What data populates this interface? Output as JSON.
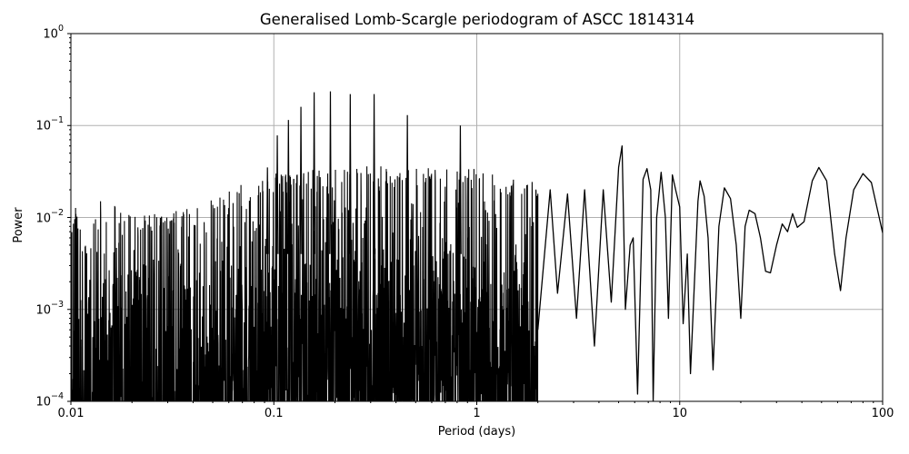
{
  "chart_data": {
    "type": "line",
    "title": "Generalised Lomb-Scargle periodogram of ASCC 1814314",
    "xlabel": "Period (days)",
    "ylabel": "Power",
    "xscale": "log",
    "yscale": "log",
    "xlim": [
      0.01,
      100
    ],
    "ylim": [
      0.0001,
      1
    ],
    "grid": true,
    "legend": null,
    "line_color": "#000000",
    "grid_color": "#b0b0b0",
    "x_ticks": [
      {
        "value": 0.01,
        "label": "0.01"
      },
      {
        "value": 0.1,
        "label": "0.1"
      },
      {
        "value": 1,
        "label": "1"
      },
      {
        "value": 10,
        "label": "10"
      },
      {
        "value": 100,
        "label": "100"
      }
    ],
    "y_ticks": [
      {
        "value": 1,
        "base": "10",
        "exp": "0"
      },
      {
        "value": 0.1,
        "base": "10",
        "exp": "−1"
      },
      {
        "value": 0.01,
        "base": "10",
        "exp": "−2"
      },
      {
        "value": 0.001,
        "base": "10",
        "exp": "−3"
      },
      {
        "value": 0.0001,
        "base": "10",
        "exp": "−4"
      }
    ],
    "noise_envelope": {
      "description": "dense oscillating periodogram below ~2 days; upper envelope (period, power)",
      "points": [
        [
          0.01,
          0.006
        ],
        [
          0.0105,
          0.011
        ],
        [
          0.012,
          0.004
        ],
        [
          0.014,
          0.013
        ],
        [
          0.02,
          0.01
        ],
        [
          0.03,
          0.009
        ],
        [
          0.05,
          0.014
        ],
        [
          0.08,
          0.022
        ],
        [
          0.1,
          0.025
        ],
        [
          0.2,
          0.03
        ],
        [
          0.5,
          0.03
        ],
        [
          1.0,
          0.028
        ],
        [
          2.0,
          0.02
        ]
      ]
    },
    "harmonic_peaks": [
      {
        "period": 0.093,
        "power": 0.035
      },
      {
        "period": 0.104,
        "power": 0.078
      },
      {
        "period": 0.118,
        "power": 0.115
      },
      {
        "period": 0.136,
        "power": 0.16
      },
      {
        "period": 0.158,
        "power": 0.23
      },
      {
        "period": 0.19,
        "power": 0.235
      },
      {
        "period": 0.238,
        "power": 0.22
      },
      {
        "period": 0.312,
        "power": 0.22
      },
      {
        "period": 0.455,
        "power": 0.13
      },
      {
        "period": 0.83,
        "power": 0.1
      }
    ],
    "smooth_tail": {
      "description": "resolved curve at long periods (period, power)",
      "points": [
        [
          2.0,
          0.0006
        ],
        [
          2.3,
          0.02
        ],
        [
          2.5,
          0.0015
        ],
        [
          2.8,
          0.018
        ],
        [
          3.1,
          0.0008
        ],
        [
          3.4,
          0.02
        ],
        [
          3.8,
          0.0004
        ],
        [
          4.2,
          0.02
        ],
        [
          4.6,
          0.0012
        ],
        [
          5.0,
          0.035
        ],
        [
          5.2,
          0.06
        ],
        [
          5.4,
          0.001
        ],
        [
          5.7,
          0.005
        ],
        [
          5.9,
          0.006
        ],
        [
          6.2,
          0.00012
        ],
        [
          6.6,
          0.026
        ],
        [
          6.9,
          0.034
        ],
        [
          7.2,
          0.02
        ],
        [
          7.4,
          0.0001
        ],
        [
          7.7,
          0.01
        ],
        [
          8.1,
          0.031
        ],
        [
          8.5,
          0.01
        ],
        [
          8.8,
          0.0008
        ],
        [
          9.2,
          0.029
        ],
        [
          9.6,
          0.019
        ],
        [
          10.0,
          0.013
        ],
        [
          10.4,
          0.0007
        ],
        [
          10.9,
          0.004
        ],
        [
          11.3,
          0.0002
        ],
        [
          12.3,
          0.015
        ],
        [
          12.6,
          0.025
        ],
        [
          13.2,
          0.017
        ],
        [
          13.8,
          0.006
        ],
        [
          14.6,
          0.00022
        ],
        [
          15.6,
          0.008
        ],
        [
          16.6,
          0.021
        ],
        [
          17.8,
          0.016
        ],
        [
          19.0,
          0.005
        ],
        [
          20.0,
          0.0008
        ],
        [
          21.0,
          0.008
        ],
        [
          22.0,
          0.012
        ],
        [
          23.5,
          0.011
        ],
        [
          25.0,
          0.006
        ],
        [
          26.5,
          0.0026
        ],
        [
          28.0,
          0.0025
        ],
        [
          30.0,
          0.005
        ],
        [
          32.0,
          0.0085
        ],
        [
          34.0,
          0.007
        ],
        [
          36.0,
          0.011
        ],
        [
          38.0,
          0.0078
        ],
        [
          41.0,
          0.009
        ],
        [
          45.0,
          0.025
        ],
        [
          48.5,
          0.035
        ],
        [
          53.0,
          0.025
        ],
        [
          58.0,
          0.004
        ],
        [
          62.0,
          0.0016
        ],
        [
          66.0,
          0.006
        ],
        [
          72.0,
          0.02
        ],
        [
          80.0,
          0.03
        ],
        [
          88.0,
          0.024
        ],
        [
          100.0,
          0.0068
        ]
      ]
    }
  },
  "seed": 1814314
}
